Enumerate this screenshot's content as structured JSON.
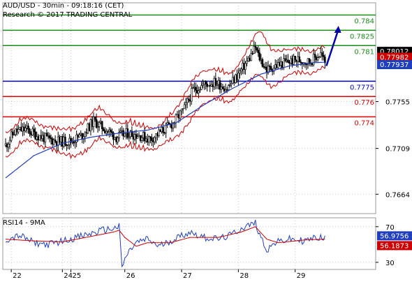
{
  "header": {
    "symbol_line": "AUD/USD - 30min - 09:18:16 (CET)",
    "research_line": "Research © 2017 TRADING CENTRAL"
  },
  "colors": {
    "candle": "#000000",
    "bollinger": "#cc0000",
    "moving_average": "#1f3fbf",
    "resistance_line": "#1a8c1a",
    "pivot_line": "#0000cc",
    "support_line": "#e00000",
    "grid": "#c8c8c8",
    "forecast_arrow": "#0000aa",
    "rsi_line": "#1f3fbf",
    "rsi_ma_line": "#cc0000"
  },
  "chart_data": [
    {
      "type": "candlestick",
      "ylim": [
        0.7645,
        0.7852
      ],
      "y_ticks": [
        {
          "value": "0.7755",
          "y": 0.7755
        },
        {
          "value": "0.7709",
          "y": 0.7709
        },
        {
          "value": "0.7664",
          "y": 0.7664
        }
      ],
      "x_ticks": [
        {
          "label": "22",
          "x": 4
        },
        {
          "label": "24",
          "x": 40
        },
        {
          "label": "25",
          "x": 46
        },
        {
          "label": "26",
          "x": 84
        },
        {
          "label": "27",
          "x": 124
        },
        {
          "label": "28",
          "x": 164
        },
        {
          "label": "29",
          "x": 204
        }
      ],
      "x_range": [
        0,
        245
      ],
      "levels": [
        {
          "name": "resistance-3",
          "label": "0.784",
          "value": 0.784,
          "kind": "resistance"
        },
        {
          "name": "resistance-2",
          "label": "0.7825",
          "value": 0.7825,
          "kind": "resistance"
        },
        {
          "name": "resistance-1",
          "label": "0.781",
          "value": 0.781,
          "kind": "resistance"
        },
        {
          "name": "pivot",
          "label": "0.7775",
          "value": 0.7775,
          "kind": "pivot"
        },
        {
          "name": "support-1",
          "label": "0.776",
          "value": 0.776,
          "kind": "support"
        },
        {
          "name": "support-2",
          "label": "0.774",
          "value": 0.774,
          "kind": "support"
        }
      ],
      "price_tags": [
        {
          "label": "0.78012",
          "value": 0.78012,
          "color": "#000000"
        },
        {
          "label": "0.77982",
          "value": 0.77982,
          "color": "#cc0000"
        },
        {
          "label": "0.77937",
          "value": 0.77937,
          "color": "#1f3fbf"
        }
      ],
      "price_anchors": [
        [
          0,
          0.7712
        ],
        [
          6,
          0.7725
        ],
        [
          14,
          0.7728
        ],
        [
          22,
          0.7722
        ],
        [
          30,
          0.7718
        ],
        [
          38,
          0.7716
        ],
        [
          46,
          0.7716
        ],
        [
          54,
          0.7722
        ],
        [
          62,
          0.7736
        ],
        [
          70,
          0.7728
        ],
        [
          78,
          0.772
        ],
        [
          86,
          0.7724
        ],
        [
          94,
          0.7722
        ],
        [
          102,
          0.7718
        ],
        [
          110,
          0.7726
        ],
        [
          118,
          0.7734
        ],
        [
          126,
          0.7748
        ],
        [
          132,
          0.7766
        ],
        [
          140,
          0.7772
        ],
        [
          148,
          0.7774
        ],
        [
          156,
          0.7768
        ],
        [
          164,
          0.7782
        ],
        [
          172,
          0.7798
        ],
        [
          176,
          0.7808
        ],
        [
          178,
          0.78
        ],
        [
          184,
          0.7786
        ],
        [
          190,
          0.779
        ],
        [
          198,
          0.7794
        ],
        [
          206,
          0.7796
        ],
        [
          214,
          0.7794
        ],
        [
          222,
          0.7802
        ],
        [
          226,
          0.779
        ]
      ],
      "candle_count": 226,
      "moving_average_anchors": [
        [
          0,
          0.768
        ],
        [
          20,
          0.7702
        ],
        [
          40,
          0.7714
        ],
        [
          60,
          0.772
        ],
        [
          80,
          0.7724
        ],
        [
          100,
          0.7727
        ],
        [
          120,
          0.7734
        ],
        [
          140,
          0.7752
        ],
        [
          160,
          0.7768
        ],
        [
          180,
          0.7782
        ],
        [
          200,
          0.779
        ],
        [
          215,
          0.7793
        ],
        [
          226,
          0.77937
        ]
      ],
      "bollinger_width_anchors": [
        [
          0,
          0.0012
        ],
        [
          30,
          0.001
        ],
        [
          60,
          0.0016
        ],
        [
          80,
          0.0012
        ],
        [
          110,
          0.001
        ],
        [
          130,
          0.0018
        ],
        [
          150,
          0.0014
        ],
        [
          165,
          0.0014
        ],
        [
          180,
          0.0022
        ],
        [
          200,
          0.0012
        ],
        [
          226,
          0.001
        ]
      ],
      "forecast_arrow": [
        [
          226,
          0.779
        ],
        [
          234,
          0.7828
        ]
      ]
    },
    {
      "type": "line",
      "title": "RSI14 - 9MA",
      "ylim": [
        22,
        80
      ],
      "y_ticks": [
        {
          "value": "70",
          "y": 70
        },
        {
          "value": "30",
          "y": 30
        }
      ],
      "current_values": [
        {
          "label": "56.9756",
          "value": 56.9756,
          "color": "#1f3fbf"
        },
        {
          "label": "56.1873",
          "value": 56.1873,
          "color": "#cc0000"
        }
      ],
      "rsi_anchors": [
        [
          0,
          55
        ],
        [
          10,
          60
        ],
        [
          20,
          52
        ],
        [
          30,
          50
        ],
        [
          40,
          54
        ],
        [
          50,
          58
        ],
        [
          60,
          62
        ],
        [
          68,
          66
        ],
        [
          76,
          68
        ],
        [
          80,
          70
        ],
        [
          82,
          25
        ],
        [
          86,
          40
        ],
        [
          92,
          52
        ],
        [
          100,
          56
        ],
        [
          108,
          48
        ],
        [
          116,
          54
        ],
        [
          124,
          60
        ],
        [
          130,
          64
        ],
        [
          140,
          58
        ],
        [
          150,
          56
        ],
        [
          158,
          60
        ],
        [
          166,
          68
        ],
        [
          172,
          72
        ],
        [
          176,
          74
        ],
        [
          180,
          58
        ],
        [
          184,
          44
        ],
        [
          190,
          52
        ],
        [
          200,
          56
        ],
        [
          210,
          54
        ],
        [
          220,
          58
        ],
        [
          226,
          56.9756
        ]
      ],
      "rsi_ma_anchors": [
        [
          0,
          56
        ],
        [
          20,
          54
        ],
        [
          40,
          53
        ],
        [
          60,
          59
        ],
        [
          76,
          64
        ],
        [
          80,
          66
        ],
        [
          84,
          58
        ],
        [
          92,
          48
        ],
        [
          100,
          52
        ],
        [
          116,
          52
        ],
        [
          130,
          58
        ],
        [
          150,
          58
        ],
        [
          166,
          64
        ],
        [
          176,
          70
        ],
        [
          184,
          56
        ],
        [
          192,
          52
        ],
        [
          210,
          55
        ],
        [
          226,
          56.1873
        ]
      ]
    }
  ]
}
